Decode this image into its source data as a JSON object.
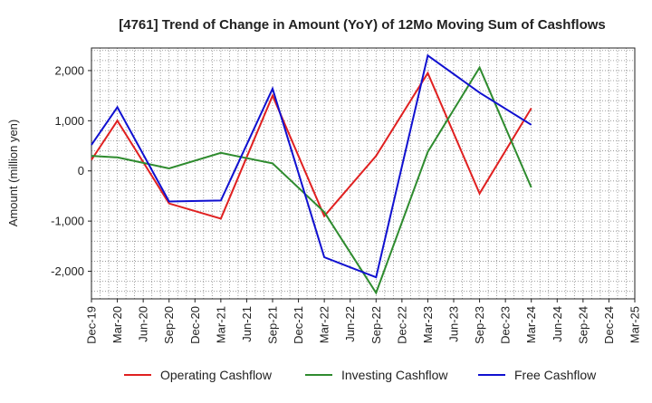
{
  "chart_data": {
    "type": "line",
    "title": "[4761]  Trend of Change in Amount (YoY) of 12Mo Moving Sum of Cashflows",
    "xlabel": "",
    "ylabel": "Amount (million yen)",
    "ylim": [
      -2550,
      2450
    ],
    "yticks": [
      -2000,
      -1000,
      0,
      1000,
      2000
    ],
    "ytick_labels": [
      "-2,000",
      "-1,000",
      "0",
      "1,000",
      "2,000"
    ],
    "categories": [
      "Dec-19",
      "Mar-20",
      "Jun-20",
      "Sep-20",
      "Dec-20",
      "Mar-21",
      "Jun-21",
      "Sep-21",
      "Dec-21",
      "Mar-22",
      "Jun-22",
      "Sep-22",
      "Dec-22",
      "Mar-23",
      "Jun-23",
      "Sep-23",
      "Dec-23",
      "Mar-24",
      "Jun-24",
      "Sep-24",
      "Dec-24",
      "Mar-25"
    ],
    "grid": true,
    "legend_position": "bottom",
    "series": [
      {
        "name": "Operating Cashflow",
        "color": "#e02020",
        "values": [
          220,
          1000,
          null,
          -650,
          null,
          -950,
          null,
          1500,
          null,
          -900,
          null,
          300,
          null,
          1950,
          null,
          -450,
          null,
          1250,
          null,
          null,
          null,
          null
        ]
      },
      {
        "name": "Investing Cashflow",
        "color": "#2e8b2e",
        "values": [
          300,
          270,
          null,
          50,
          null,
          360,
          null,
          150,
          null,
          -820,
          null,
          -2430,
          null,
          380,
          null,
          2060,
          null,
          -330,
          null,
          null,
          null,
          null
        ]
      },
      {
        "name": "Free Cashflow",
        "color": "#1010d0",
        "values": [
          520,
          1270,
          null,
          -610,
          null,
          -590,
          null,
          1640,
          null,
          -1720,
          null,
          -2120,
          null,
          2300,
          null,
          1560,
          null,
          920,
          null,
          null,
          null,
          null
        ]
      }
    ]
  }
}
